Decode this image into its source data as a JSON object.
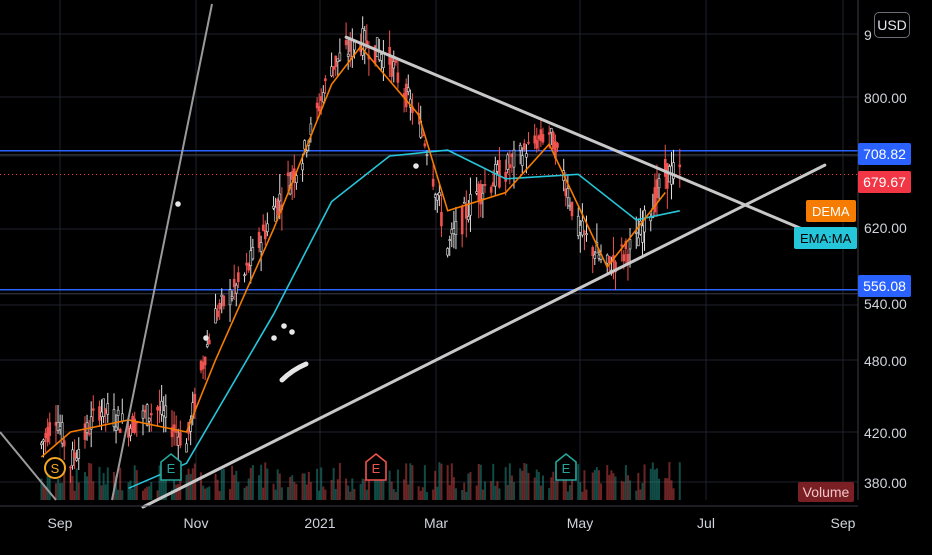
{
  "chart_data": {
    "type": "candlestick",
    "currency": "USD",
    "x_ticks": [
      "Sep",
      "Nov",
      "2021",
      "Mar",
      "May",
      "Jul",
      "Sep"
    ],
    "y_ticks": [
      "9",
      "800.00",
      "620.00",
      "540.00",
      "480.00",
      "420.00",
      "380.00"
    ],
    "y_range": [
      370,
      905
    ],
    "price_labels": {
      "resistance": "708.82",
      "last": "679.67",
      "support": "556.08"
    },
    "horizontal_levels": [
      {
        "name": "resistance",
        "value": 708.82,
        "color": "#2962ff"
      },
      {
        "name": "last",
        "value": 679.67,
        "color": "#f23645"
      },
      {
        "name": "support",
        "value": 556.08,
        "color": "#2962ff"
      }
    ],
    "indicators": [
      {
        "name": "DEMA",
        "color": "#f57c00",
        "value": 650
      },
      {
        "name": "EMA:MA",
        "color": "#26c6da",
        "value": 610
      }
    ],
    "price_path": [
      {
        "date": "2020-08-24",
        "close": 410
      },
      {
        "date": "2020-08-31",
        "close": 435
      },
      {
        "date": "2020-09-07",
        "close": 395
      },
      {
        "date": "2020-09-21",
        "close": 440
      },
      {
        "date": "2020-10-05",
        "close": 425
      },
      {
        "date": "2020-10-19",
        "close": 440
      },
      {
        "date": "2020-11-02",
        "close": 410
      },
      {
        "date": "2020-11-16",
        "close": 530
      },
      {
        "date": "2020-11-30",
        "close": 570
      },
      {
        "date": "2020-12-14",
        "close": 640
      },
      {
        "date": "2020-12-28",
        "close": 700
      },
      {
        "date": "2021-01-11",
        "close": 850
      },
      {
        "date": "2021-01-25",
        "close": 890
      },
      {
        "date": "2021-02-08",
        "close": 860
      },
      {
        "date": "2021-02-22",
        "close": 760
      },
      {
        "date": "2021-03-08",
        "close": 600
      },
      {
        "date": "2021-03-22",
        "close": 660
      },
      {
        "date": "2021-04-05",
        "close": 685
      },
      {
        "date": "2021-04-26",
        "close": 740
      },
      {
        "date": "2021-05-10",
        "close": 620
      },
      {
        "date": "2021-05-24",
        "close": 580
      },
      {
        "date": "2021-06-07",
        "close": 605
      },
      {
        "date": "2021-06-21",
        "close": 680
      },
      {
        "date": "2021-06-28",
        "close": 680
      }
    ],
    "dema_path": [
      {
        "date": "2020-08-24",
        "value": 400
      },
      {
        "date": "2020-09-07",
        "value": 420
      },
      {
        "date": "2020-10-05",
        "value": 430
      },
      {
        "date": "2020-11-02",
        "value": 420
      },
      {
        "date": "2020-11-16",
        "value": 480
      },
      {
        "date": "2020-12-14",
        "value": 620
      },
      {
        "date": "2021-01-11",
        "value": 820
      },
      {
        "date": "2021-01-25",
        "value": 880
      },
      {
        "date": "2021-02-22",
        "value": 770
      },
      {
        "date": "2021-03-08",
        "value": 640
      },
      {
        "date": "2021-04-05",
        "value": 660
      },
      {
        "date": "2021-04-26",
        "value": 720
      },
      {
        "date": "2021-05-24",
        "value": 580
      },
      {
        "date": "2021-06-21",
        "value": 660
      }
    ],
    "ema_path": [
      {
        "date": "2020-10-05",
        "value": 375
      },
      {
        "date": "2020-11-02",
        "value": 395
      },
      {
        "date": "2020-12-14",
        "value": 530
      },
      {
        "date": "2021-01-11",
        "value": 650
      },
      {
        "date": "2021-02-08",
        "value": 700
      },
      {
        "date": "2021-03-08",
        "value": 710
      },
      {
        "date": "2021-04-05",
        "value": 675
      },
      {
        "date": "2021-05-10",
        "value": 680
      },
      {
        "date": "2021-06-07",
        "value": 630
      },
      {
        "date": "2021-06-28",
        "value": 640
      }
    ],
    "trendlines": [
      {
        "from": {
          "date": "2021-01-18",
          "value": 895
        },
        "to": {
          "date": "2021-09-06",
          "value": 610
        }
      },
      {
        "from": {
          "date": "2020-10-12",
          "value": 360
        },
        "to": {
          "date": "2021-09-06",
          "value": 690
        }
      }
    ],
    "event_markers": [
      {
        "label": "S",
        "kind": "split",
        "color": "#f5a623"
      },
      {
        "label": "E",
        "kind": "earnings",
        "color": "#26a69a"
      },
      {
        "label": "E",
        "kind": "earnings",
        "color": "#ef5350"
      },
      {
        "label": "E",
        "kind": "earnings",
        "color": "#26a69a"
      }
    ],
    "volume_label": "Volume"
  }
}
